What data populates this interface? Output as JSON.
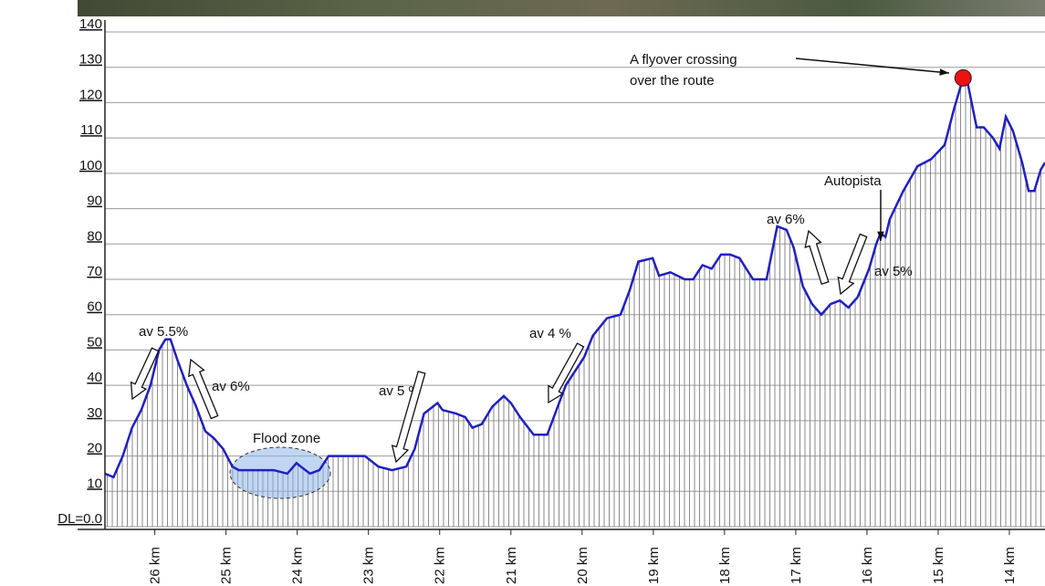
{
  "chart_data": {
    "type": "area",
    "x": [
      26.7,
      26.58,
      26.45,
      26.32,
      26.19,
      26.06,
      25.94,
      25.85,
      25.78,
      25.68,
      25.55,
      25.42,
      25.29,
      25.17,
      25.04,
      24.91,
      24.82,
      24.33,
      24.14,
      24.01,
      23.95,
      23.82,
      23.69,
      23.56,
      23.05,
      22.86,
      22.67,
      22.47,
      22.35,
      22.22,
      22.03,
      21.96,
      21.77,
      21.64,
      21.54,
      21.41,
      21.26,
      21.1,
      21.0,
      20.87,
      20.68,
      20.49,
      20.36,
      20.23,
      20.1,
      19.97,
      19.85,
      19.65,
      19.46,
      19.33,
      19.21,
      19.01,
      18.92,
      18.76,
      18.56,
      18.44,
      18.31,
      18.18,
      18.05,
      17.92,
      17.79,
      17.6,
      17.41,
      17.26,
      17.13,
      17.03,
      16.9,
      16.77,
      16.64,
      16.51,
      16.38,
      16.26,
      16.13,
      15.97,
      15.87,
      15.81,
      15.74,
      15.68,
      15.49,
      15.29,
      15.1,
      14.91,
      14.78,
      14.65,
      14.59,
      14.46,
      14.36,
      14.23,
      14.14,
      14.05,
      13.95,
      13.82,
      13.73,
      13.65,
      13.56,
      13.5
    ],
    "values": [
      15,
      14,
      20,
      28,
      33,
      40,
      50,
      53,
      53,
      47,
      40,
      34,
      27,
      25,
      22,
      17,
      16,
      16,
      15,
      18,
      17,
      15,
      16,
      20,
      20,
      17,
      16,
      17,
      22,
      32,
      35,
      33,
      32,
      31,
      28,
      29,
      34,
      37,
      35,
      31,
      26,
      26,
      33,
      40,
      44,
      48,
      54,
      59,
      60,
      67,
      75,
      76,
      71,
      72,
      70,
      70,
      74,
      73,
      77,
      77,
      76,
      70,
      70,
      85,
      84,
      79,
      68,
      63,
      60,
      63,
      64,
      62,
      65,
      73,
      80,
      83,
      82,
      87,
      95,
      102,
      104,
      108,
      118,
      127,
      126,
      113,
      113,
      110,
      107,
      116,
      112,
      103,
      95,
      95,
      101,
      103
    ],
    "color": "#2020c0",
    "xlim": [
      26.7,
      13.5
    ],
    "xticks": [
      {
        "value": 26,
        "label": "26 km"
      },
      {
        "value": 25,
        "label": "25 km"
      },
      {
        "value": 24,
        "label": "24 km"
      },
      {
        "value": 23,
        "label": "23 km"
      },
      {
        "value": 22,
        "label": "22 km"
      },
      {
        "value": 21,
        "label": "21 km"
      },
      {
        "value": 20,
        "label": "20 km"
      },
      {
        "value": 19,
        "label": "19 km"
      },
      {
        "value": 18,
        "label": "18 km"
      },
      {
        "value": 17,
        "label": "17 km"
      },
      {
        "value": 16,
        "label": "16 km"
      },
      {
        "value": 15,
        "label": "15 km"
      },
      {
        "value": 14,
        "label": "14 km"
      }
    ],
    "ylim": [
      0,
      140
    ],
    "yticks": [
      {
        "value": 0,
        "label": "DL=0.0"
      },
      10,
      20,
      30,
      40,
      50,
      60,
      70,
      80,
      90,
      100,
      110,
      120,
      130,
      140
    ],
    "grid": true,
    "annotations": [
      "A flyover  crossing",
      "over the route",
      "Autopista",
      "av 6%",
      "av 5%",
      "av 5.5%",
      "av 6%",
      "av 5 %",
      "av 4 %",
      "Flood zone"
    ]
  }
}
